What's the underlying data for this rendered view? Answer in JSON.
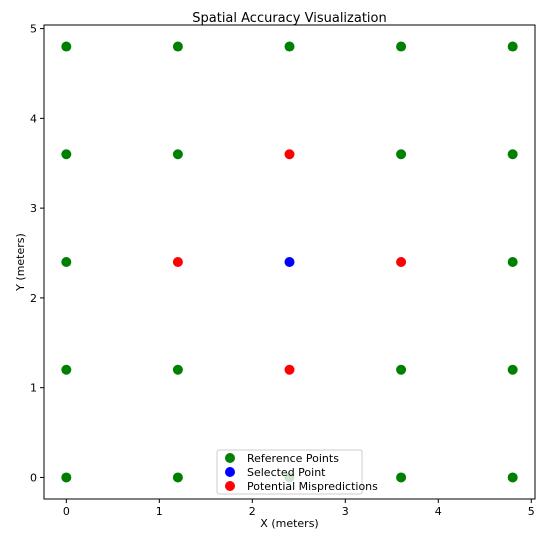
{
  "chart_data": {
    "type": "scatter",
    "title": "Spatial Accuracy Visualization",
    "xlabel": "X (meters)",
    "ylabel": "Y (meters)",
    "xlim": [
      -0.24,
      5.04
    ],
    "ylim": [
      -0.24,
      5.04
    ],
    "xticks": [
      0,
      1,
      2,
      3,
      4,
      5
    ],
    "yticks": [
      0,
      1,
      2,
      3,
      4,
      5
    ],
    "grid": false,
    "legend_position": "bottom-center",
    "series": [
      {
        "name": "Reference Points",
        "color": "#008000",
        "points": [
          [
            0,
            0
          ],
          [
            1.2,
            0
          ],
          [
            2.4,
            0
          ],
          [
            3.6,
            0
          ],
          [
            4.8,
            0
          ],
          [
            0,
            1.2
          ],
          [
            1.2,
            1.2
          ],
          [
            3.6,
            1.2
          ],
          [
            4.8,
            1.2
          ],
          [
            0,
            2.4
          ],
          [
            4.8,
            2.4
          ],
          [
            0,
            3.6
          ],
          [
            1.2,
            3.6
          ],
          [
            3.6,
            3.6
          ],
          [
            4.8,
            3.6
          ],
          [
            0,
            4.8
          ],
          [
            1.2,
            4.8
          ],
          [
            2.4,
            4.8
          ],
          [
            3.6,
            4.8
          ],
          [
            4.8,
            4.8
          ]
        ]
      },
      {
        "name": "Selected Point",
        "color": "#0000ff",
        "points": [
          [
            2.4,
            2.4
          ]
        ]
      },
      {
        "name": "Potential Mispredictions",
        "color": "#ff0000",
        "points": [
          [
            1.2,
            2.4
          ],
          [
            3.6,
            2.4
          ],
          [
            2.4,
            1.2
          ],
          [
            2.4,
            3.6
          ]
        ]
      }
    ]
  }
}
